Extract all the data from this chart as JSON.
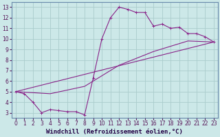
{
  "background_color": "#cce8e8",
  "grid_color": "#aacccc",
  "line_color": "#882288",
  "xlabel": "Windchill (Refroidissement éolien,°C)",
  "xlabel_fontsize": 6.5,
  "xlim": [
    -0.5,
    23.5
  ],
  "ylim": [
    2.5,
    13.5
  ],
  "xticks": [
    0,
    1,
    2,
    3,
    4,
    5,
    6,
    7,
    8,
    9,
    10,
    11,
    12,
    13,
    14,
    15,
    16,
    17,
    18,
    19,
    20,
    21,
    22,
    23
  ],
  "yticks": [
    3,
    4,
    5,
    6,
    7,
    8,
    9,
    10,
    11,
    12,
    13
  ],
  "tick_fontsize": 5.5,
  "line1_x": [
    0,
    1,
    2,
    3,
    4,
    5,
    6,
    7,
    8,
    9,
    10,
    11,
    12,
    13,
    14,
    15,
    16,
    17,
    18,
    19,
    20,
    21,
    22,
    23
  ],
  "line1_y": [
    5.0,
    4.8,
    4.0,
    3.0,
    3.3,
    3.2,
    3.1,
    3.1,
    2.8,
    6.3,
    10.0,
    12.0,
    13.0,
    12.8,
    12.5,
    12.5,
    11.2,
    11.4,
    11.0,
    11.1,
    10.5,
    10.5,
    10.2,
    9.7
  ],
  "line2_x": [
    0,
    23
  ],
  "line2_y": [
    5.0,
    9.7
  ],
  "line3_x": [
    0,
    4,
    8,
    12,
    16,
    20,
    23
  ],
  "line3_y": [
    5.0,
    4.8,
    5.5,
    7.5,
    8.8,
    9.8,
    9.7
  ]
}
